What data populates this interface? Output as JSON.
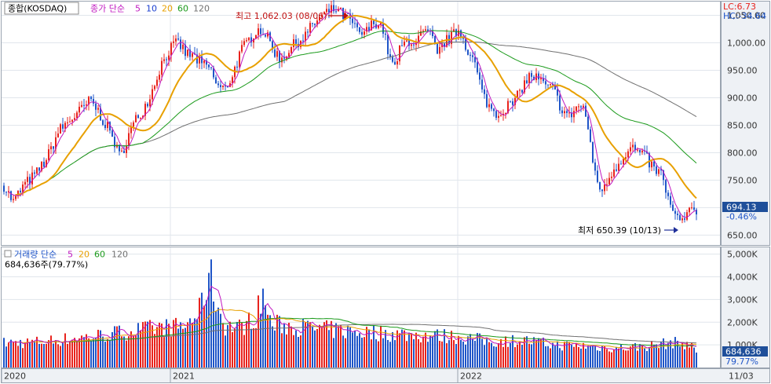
{
  "price_panel": {
    "title_box": "종합(KOSDAQ)",
    "ma_prefix": "종가 단순",
    "ma_labels": [
      {
        "text": "5",
        "color": "#c018c0"
      },
      {
        "text": "10",
        "color": "#1a3fd0"
      },
      {
        "text": "20",
        "color": "#e8a000"
      },
      {
        "text": "60",
        "color": "#1a9a1a"
      },
      {
        "text": "120",
        "color": "#707070"
      }
    ],
    "lc": "LC:6.73",
    "hc": "HC:-34.64",
    "high_note": "최고 1,062.03 (08/06)",
    "low_note": "최저 650.39 (10/13)",
    "current_value": "694.13",
    "current_change": "-0.46%",
    "y_ticks": [
      "1,050.00",
      "1,000.00",
      "950.00",
      "900.00",
      "850.00",
      "800.00",
      "750.00",
      "700.00",
      "650.00"
    ]
  },
  "volume_panel": {
    "ma_prefix": "거래량 단순",
    "ma_labels": [
      {
        "text": "5",
        "color": "#c018c0"
      },
      {
        "text": "20",
        "color": "#e8a000"
      },
      {
        "text": "60",
        "color": "#1a9a1a"
      },
      {
        "text": "120",
        "color": "#707070"
      }
    ],
    "vol_info": "684,636주(79.77%)",
    "current_volume": "684,636",
    "current_ratio": "79.77%",
    "y_ticks": [
      "5,000K",
      "4,000K",
      "3,000K",
      "2,000K",
      "1,000K"
    ]
  },
  "x_axis": {
    "labels": [
      "2020",
      "2021",
      "2022",
      "11/03"
    ]
  },
  "colors": {
    "up": "#e8231d",
    "down": "#1f55c8",
    "ma5": "#c018c0",
    "ma20": "#e8a000",
    "ma60": "#1a9a1a",
    "ma120": "#707070"
  },
  "chart_data": {
    "type": "line",
    "title": "종합(KOSDAQ)",
    "price_ylim": [
      632,
      1075
    ],
    "volume_ylim": [
      0,
      5300
    ],
    "volume_unit": "K",
    "price_keypoints": [
      [
        0,
        740
      ],
      [
        12,
        710
      ],
      [
        25,
        740
      ],
      [
        40,
        760
      ],
      [
        55,
        790
      ],
      [
        70,
        840
      ],
      [
        85,
        860
      ],
      [
        100,
        880
      ],
      [
        110,
        895
      ],
      [
        118,
        880
      ],
      [
        128,
        855
      ],
      [
        138,
        830
      ],
      [
        148,
        790
      ],
      [
        158,
        830
      ],
      [
        168,
        860
      ],
      [
        178,
        880
      ],
      [
        188,
        910
      ],
      [
        200,
        960
      ],
      [
        212,
        990
      ],
      [
        222,
        1000
      ],
      [
        232,
        980
      ],
      [
        242,
        975
      ],
      [
        252,
        960
      ],
      [
        262,
        955
      ],
      [
        272,
        920
      ],
      [
        282,
        915
      ],
      [
        292,
        945
      ],
      [
        302,
        985
      ],
      [
        312,
        1005
      ],
      [
        322,
        1025
      ],
      [
        332,
        1020
      ],
      [
        342,
        990
      ],
      [
        352,
        970
      ],
      [
        362,
        985
      ],
      [
        372,
        1000
      ],
      [
        382,
        1010
      ],
      [
        392,
        1030
      ],
      [
        402,
        1045
      ],
      [
        412,
        1055
      ],
      [
        422,
        1062
      ],
      [
        432,
        1050
      ],
      [
        442,
        1040
      ],
      [
        452,
        1015
      ],
      [
        462,
        1020
      ],
      [
        472,
        1040
      ],
      [
        482,
        1030
      ],
      [
        490,
        980
      ],
      [
        497,
        950
      ],
      [
        505,
        990
      ],
      [
        515,
        1005
      ],
      [
        525,
        1000
      ],
      [
        535,
        1020
      ],
      [
        545,
        1010
      ],
      [
        552,
        975
      ],
      [
        560,
        1000
      ],
      [
        570,
        1010
      ],
      [
        580,
        1025
      ],
      [
        590,
        990
      ],
      [
        600,
        960
      ],
      [
        610,
        905
      ],
      [
        620,
        880
      ],
      [
        630,
        870
      ],
      [
        640,
        885
      ],
      [
        650,
        890
      ],
      [
        660,
        920
      ],
      [
        670,
        940
      ],
      [
        680,
        935
      ],
      [
        690,
        920
      ],
      [
        700,
        915
      ],
      [
        710,
        880
      ],
      [
        720,
        865
      ],
      [
        730,
        885
      ],
      [
        740,
        880
      ],
      [
        748,
        800
      ],
      [
        756,
        745
      ],
      [
        764,
        730
      ],
      [
        772,
        760
      ],
      [
        782,
        780
      ],
      [
        792,
        800
      ],
      [
        800,
        810
      ],
      [
        808,
        800
      ],
      [
        818,
        790
      ],
      [
        828,
        770
      ],
      [
        838,
        760
      ],
      [
        845,
        720
      ],
      [
        852,
        690
      ],
      [
        860,
        675
      ],
      [
        868,
        680
      ],
      [
        876,
        695
      ],
      [
        885,
        694
      ]
    ],
    "volume_keypoints": [
      [
        0,
        1080
      ],
      [
        40,
        1120
      ],
      [
        80,
        1250
      ],
      [
        120,
        1400
      ],
      [
        160,
        1600
      ],
      [
        200,
        1750
      ],
      [
        230,
        1800
      ],
      [
        250,
        2500
      ],
      [
        262,
        4200
      ],
      [
        272,
        2700
      ],
      [
        282,
        1850
      ],
      [
        300,
        1750
      ],
      [
        320,
        2200
      ],
      [
        330,
        3200
      ],
      [
        340,
        1900
      ],
      [
        360,
        1850
      ],
      [
        400,
        1700
      ],
      [
        460,
        1550
      ],
      [
        520,
        1450
      ],
      [
        580,
        1350
      ],
      [
        620,
        1150
      ],
      [
        660,
        1200
      ],
      [
        700,
        1000
      ],
      [
        740,
        950
      ],
      [
        780,
        850
      ],
      [
        820,
        950
      ],
      [
        850,
        1100
      ],
      [
        870,
        1050
      ],
      [
        885,
        685
      ]
    ]
  }
}
